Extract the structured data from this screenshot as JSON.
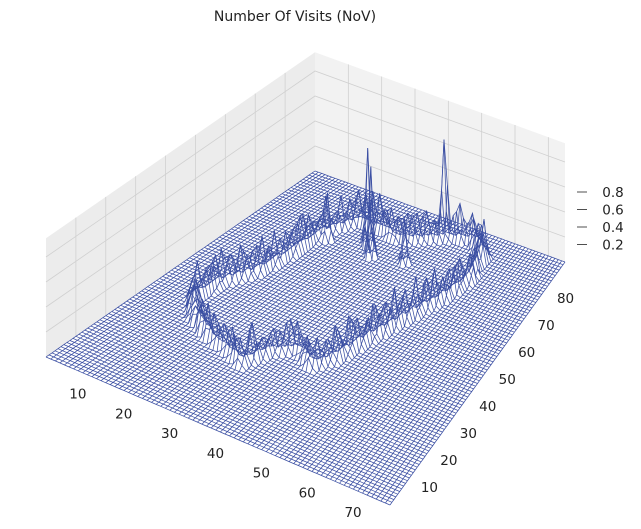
{
  "chart_data": {
    "type": "surface-wireframe-3d",
    "title": "Number Of Visits (NoV)",
    "xlabel": "",
    "ylabel": "",
    "zlabel": "",
    "x_ticks": [
      10,
      20,
      30,
      40,
      50,
      60,
      70
    ],
    "y_ticks": [
      10,
      20,
      30,
      40,
      50,
      60,
      70,
      80
    ],
    "z_ticks": [
      0.2,
      0.4,
      0.6,
      0.8
    ],
    "x_range": [
      0,
      75
    ],
    "y_range": [
      0,
      90
    ],
    "z_range": [
      0,
      0.9
    ],
    "grid": true,
    "colors": {
      "wire": "#3b4fa3",
      "pane_back": "#f2f2f2",
      "pane_side": "#ececec",
      "grid": "#d0d0d0"
    },
    "features": {
      "baseline": 0.0,
      "boundary_wall_height": 0.25,
      "peaks": [
        {
          "x": 29,
          "y": 73,
          "z": 0.78
        },
        {
          "x": 32,
          "y": 70,
          "z": 0.72
        },
        {
          "x": 43,
          "y": 84,
          "z": 0.62
        },
        {
          "x": 20,
          "y": 70,
          "z": 0.38
        },
        {
          "x": 40,
          "y": 72,
          "z": 0.35
        }
      ]
    }
  }
}
